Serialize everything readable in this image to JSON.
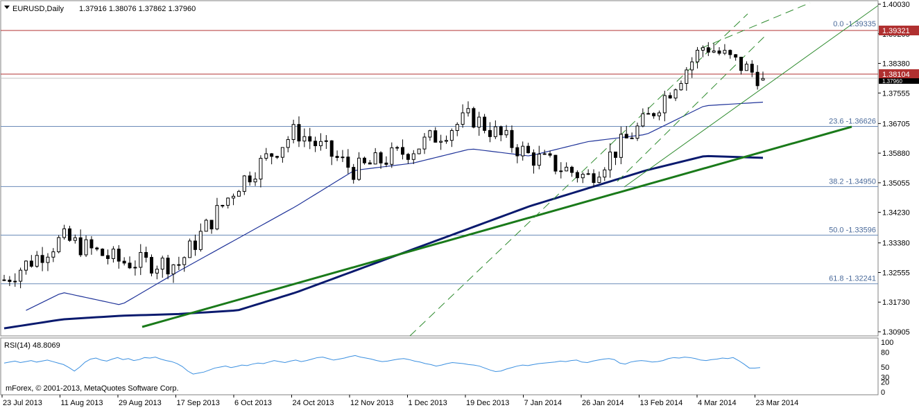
{
  "header": {
    "symbol_label": "EURUSD,Daily",
    "ohlc": "1.37916 1.38076 1.37862 1.37960"
  },
  "rsi_panel": {
    "label": "RSI(14) 48.8069",
    "period": 14,
    "current_value": 48.8069,
    "levels": [
      "100",
      "80",
      "50",
      "30",
      "20",
      "0"
    ]
  },
  "watermark": "mForex, © 2001-2013, MetaQuotes Software Corp.",
  "price_axis": {
    "ticks": [
      "1.40030",
      "1.39205",
      "1.38380",
      "1.37555",
      "1.36705",
      "1.35880",
      "1.35055",
      "1.34230",
      "1.33380",
      "1.32555",
      "1.31730",
      "1.30905"
    ]
  },
  "time_axis": {
    "labels": [
      "23 Jul 2013",
      "11 Aug 2013",
      "29 Aug 2013",
      "17 Sep 2013",
      "6 Oct 2013",
      "24 Oct 2013",
      "12 Nov 2013",
      "1 Dec 2013",
      "19 Dec 2013",
      "7 Jan 2014",
      "26 Jan 2014",
      "13 Feb 2014",
      "4 Mar 2014",
      "23 Mar 2014"
    ]
  },
  "price_tags": {
    "upper_red": "1.39321",
    "lower_red": "1.38104",
    "current": "1.37960"
  },
  "fib_levels": [
    {
      "label": "0.0 -1.39335",
      "price": 1.39335
    },
    {
      "label": "23.6 -1.36626",
      "price": 1.36626
    },
    {
      "label": "38.2 -1.34950",
      "price": 1.3495
    },
    {
      "label": "50.0 -1.33596",
      "price": 1.33596
    },
    {
      "label": "61.8 -1.32241",
      "price": 1.32241
    }
  ],
  "colors": {
    "background": "#ffffff",
    "grid_border": "#808080",
    "candle": "#000000",
    "ma_slow": "#0a1a6e",
    "ma_fast": "#1f3399",
    "trendline": "#1a7a1a",
    "channel": "#2e8b2e",
    "resistance": "#b03030",
    "fib_line": "#6a8ab8",
    "fib_text": "#4a6a9a",
    "rsi_line": "#3a8fe0"
  },
  "chart_data": {
    "type": "line",
    "title": "EURUSD,Daily",
    "instrument": "EURUSD",
    "timeframe": "Daily",
    "last_bar": {
      "open": 1.37916,
      "high": 1.38076,
      "low": 1.37862,
      "close": 1.3796
    },
    "ylim": [
      1.30905,
      1.4003
    ],
    "x": [
      "23 Jul 2013",
      "11 Aug 2013",
      "29 Aug 2013",
      "17 Sep 2013",
      "6 Oct 2013",
      "24 Oct 2013",
      "12 Nov 2013",
      "1 Dec 2013",
      "19 Dec 2013",
      "7 Jan 2014",
      "26 Jan 2014",
      "13 Feb 2014",
      "4 Mar 2014",
      "23 Mar 2014"
    ],
    "series": [
      {
        "values": [
          1.3235,
          1.335,
          1.3285,
          1.328,
          1.35,
          1.365,
          1.354,
          1.36,
          1.369,
          1.358,
          1.352,
          1.368,
          1.389,
          1.3796
        ]
      },
      {
        "values": [
          1.312,
          1.32,
          1.3165,
          1.326,
          1.335,
          1.344,
          1.354,
          1.356,
          1.36,
          1.358,
          1.362,
          1.364,
          1.372,
          1.373
        ]
      },
      {
        "values": [
          1.31,
          1.3125,
          1.3135,
          1.314,
          1.315,
          1.32,
          1.326,
          1.332,
          1.338,
          1.344,
          1.349,
          1.354,
          1.358,
          1.3575
        ]
      }
    ],
    "resistance_levels": [
      1.39321,
      1.38104
    ],
    "current_price": 1.3796,
    "grid": false
  },
  "rsi_data": {
    "values": [
      58,
      60,
      62,
      59,
      61,
      63,
      60,
      62,
      64,
      61,
      58,
      55,
      49,
      42,
      50,
      60,
      66,
      68,
      64,
      62,
      66,
      69,
      65,
      67,
      63,
      65,
      69,
      68,
      70,
      66,
      63,
      61,
      57,
      51,
      42,
      36,
      38,
      40,
      44,
      48,
      50,
      52,
      49,
      51,
      54,
      53,
      56,
      58,
      57,
      60,
      63,
      61,
      59,
      62,
      64,
      61,
      63,
      66,
      69,
      70,
      67,
      64,
      66,
      68,
      71,
      73,
      70,
      68,
      66,
      63,
      61,
      62,
      64,
      66,
      67,
      65,
      62,
      60,
      57,
      55,
      52,
      54,
      57,
      59,
      58,
      57,
      55,
      54,
      52,
      48,
      44,
      41,
      42,
      46,
      49,
      52,
      54,
      53,
      55,
      57,
      58,
      59,
      60,
      62,
      61,
      63,
      64,
      60,
      59,
      62,
      64,
      66,
      67,
      65,
      58,
      56,
      60,
      62,
      63,
      62,
      60,
      61,
      63,
      67,
      69,
      68,
      70,
      69,
      67,
      64,
      63,
      65,
      66,
      68,
      67,
      69,
      63,
      56,
      48,
      48,
      49
    ],
    "last": 48.8069
  }
}
